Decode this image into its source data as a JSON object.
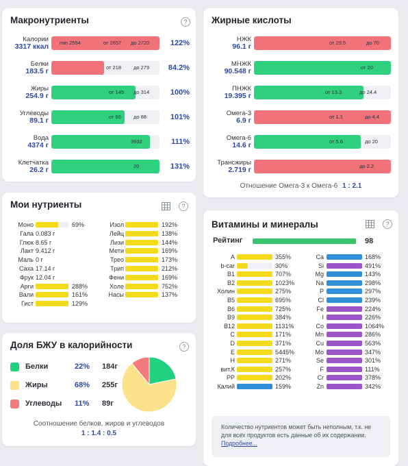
{
  "macro": {
    "title": "Макронутриенты",
    "rows": [
      {
        "label": "Калории",
        "value": "3317 ккал",
        "pct": "122%",
        "color": "red",
        "fill": 1.0,
        "texts": [
          {
            "t": "min 2594",
            "x": 12
          },
          {
            "t": "от 2657",
            "x": 76
          },
          {
            "t": "до 2720",
            "x": 116
          }
        ]
      },
      {
        "label": "Белки",
        "value": "183.5 г",
        "pct": "84.2%",
        "color": "red",
        "fill": 0.49,
        "texts": [
          {
            "t": "от 218",
            "x": 80
          },
          {
            "t": "до 279",
            "x": 120
          }
        ]
      },
      {
        "label": "Жиры",
        "value": "254.9 г",
        "pct": "100%",
        "color": "green",
        "fill": 0.78,
        "texts": [
          {
            "t": "от 145",
            "x": 84
          },
          {
            "t": "до 314",
            "x": 120
          }
        ]
      },
      {
        "label": "Углеводы",
        "value": "89.1 г",
        "pct": "101%",
        "color": "green",
        "fill": 0.68,
        "texts": [
          {
            "t": "от 66",
            "x": 84
          },
          {
            "t": "до 88",
            "x": 120
          }
        ]
      },
      {
        "label": "Вода",
        "value": "4374 г",
        "pct": "111%",
        "color": "green",
        "fill": 0.91,
        "texts": [
          {
            "t": "3932",
            "x": 116
          }
        ]
      },
      {
        "label": "Клетчатка",
        "value": "26.2 г",
        "pct": "131%",
        "color": "green",
        "fill": 1.0,
        "texts": [
          {
            "t": "20",
            "x": 120
          }
        ]
      }
    ]
  },
  "fatty": {
    "title": "Жирные кислоты",
    "rows": [
      {
        "label": "НЖК",
        "value": "96.1 г",
        "color": "red",
        "fill": 1.0,
        "texts": [
          {
            "t": "от 29.5",
            "x": 178
          },
          {
            "t": "до 70",
            "x": 232
          }
        ]
      },
      {
        "label": "МНЖК",
        "value": "90.548 г",
        "color": "green",
        "fill": 1.0,
        "texts": [
          {
            "t": "от 20",
            "x": 224
          }
        ]
      },
      {
        "label": "ПНЖК",
        "value": "19.395 г",
        "color": "green",
        "fill": 0.8,
        "texts": [
          {
            "t": "от 13.3",
            "x": 172
          },
          {
            "t": "до 24.4",
            "x": 222
          }
        ]
      },
      {
        "label": "Омега-3",
        "value": "6.9 г",
        "color": "red",
        "fill": 1.0,
        "texts": [
          {
            "t": "от 1.1",
            "x": 178
          },
          {
            "t": "до 4.4",
            "x": 230
          }
        ]
      },
      {
        "label": "Омега-6",
        "value": "14.6 г",
        "color": "green",
        "fill": 0.78,
        "texts": [
          {
            "t": "от 5.6",
            "x": 178
          },
          {
            "t": "до 20",
            "x": 230
          }
        ]
      },
      {
        "label": "Трансжиры",
        "value": "2.719 г",
        "color": "red",
        "fill": 1.0,
        "texts": [
          {
            "t": "до 2.2",
            "x": 222
          }
        ]
      }
    ],
    "ratio_label": "Отношение Омега-3 к Омега-6",
    "ratio_value": "1 : 2.1"
  },
  "mynutrients": {
    "title": "Мои нутриенты",
    "left": [
      {
        "label": "Моно",
        "pct": "69%",
        "fill": 0.69
      },
      {
        "label": "Гала",
        "text": "0.083 г"
      },
      {
        "label": "Глюк",
        "text": "8.65 г"
      },
      {
        "label": "Лакт",
        "text": "9.412 г"
      },
      {
        "label": "Маль",
        "text": "0 г"
      },
      {
        "label": "Саха",
        "text": "17.14 г"
      },
      {
        "label": "Фрук",
        "text": "12.04 г"
      },
      {
        "label": "Арги",
        "pct": "288%",
        "fill": 1.0
      },
      {
        "label": "Вали",
        "pct": "161%",
        "fill": 1.0
      },
      {
        "label": "Гист",
        "pct": "129%",
        "fill": 1.0
      }
    ],
    "right": [
      {
        "label": "Изол",
        "pct": "192%"
      },
      {
        "label": "Лейц",
        "pct": "138%"
      },
      {
        "label": "Лизи",
        "pct": "144%"
      },
      {
        "label": "Мети",
        "pct": "169%"
      },
      {
        "label": "Трео",
        "pct": "173%"
      },
      {
        "label": "Трип",
        "pct": "212%"
      },
      {
        "label": "Фени",
        "pct": "169%"
      },
      {
        "label": "Холе",
        "pct": "752%"
      },
      {
        "label": "Насы",
        "pct": "137%"
      }
    ]
  },
  "bju": {
    "title": "Доля БЖУ в калорийности",
    "rows": [
      {
        "label": "Белки",
        "pct": "22%",
        "grams": "184г",
        "color": "#22d17d"
      },
      {
        "label": "Жиры",
        "pct": "68%",
        "grams": "255г",
        "color": "#fbe189"
      },
      {
        "label": "Углеводы",
        "pct": "11%",
        "grams": "89г",
        "color": "#f47a7e"
      }
    ],
    "pie": [
      22,
      68,
      11
    ],
    "caption": "Соотношение белков, жиров и углеводов",
    "ratio": "1 : 1.4 : 0.5"
  },
  "vitamins": {
    "title": "Витамины и минералы",
    "rating_label": "Рейтинг",
    "rating_value": "98",
    "rating_fill": 0.98,
    "left": [
      {
        "label": "A",
        "pct": "355%",
        "c": "yellow"
      },
      {
        "label": "b-car",
        "pct": "30%",
        "c": "yellow",
        "fill": 0.3
      },
      {
        "label": "B1",
        "pct": "707%",
        "c": "yellow"
      },
      {
        "label": "B2",
        "pct": "1023%",
        "c": "yellow"
      },
      {
        "label": "Холин",
        "pct": "275%",
        "c": "yellow"
      },
      {
        "label": "B5",
        "pct": "695%",
        "c": "yellow"
      },
      {
        "label": "B6",
        "pct": "725%",
        "c": "yellow"
      },
      {
        "label": "B9",
        "pct": "384%",
        "c": "yellow"
      },
      {
        "label": "B12",
        "pct": "1131%",
        "c": "yellow"
      },
      {
        "label": "C",
        "pct": "171%",
        "c": "yellow"
      },
      {
        "label": "D",
        "pct": "371%",
        "c": "yellow"
      },
      {
        "label": "E",
        "pct": "5445%",
        "c": "yellow"
      },
      {
        "label": "H",
        "pct": "271%",
        "c": "yellow"
      },
      {
        "label": "вит.К",
        "pct": "257%",
        "c": "yellow"
      },
      {
        "label": "PP",
        "pct": "202%",
        "c": "yellow"
      },
      {
        "label": "Калий",
        "pct": "159%",
        "c": "blue"
      }
    ],
    "right": [
      {
        "label": "Ca",
        "pct": "168%",
        "c": "blue"
      },
      {
        "label": "Si",
        "pct": "491%",
        "c": "purple"
      },
      {
        "label": "Mg",
        "pct": "143%",
        "c": "blue"
      },
      {
        "label": "Na",
        "pct": "298%",
        "c": "blue"
      },
      {
        "label": "P",
        "pct": "297%",
        "c": "blue"
      },
      {
        "label": "Cl",
        "pct": "239%",
        "c": "blue"
      },
      {
        "label": "Fe",
        "pct": "224%",
        "c": "purple"
      },
      {
        "label": "I",
        "pct": "226%",
        "c": "purple"
      },
      {
        "label": "Co",
        "pct": "1064%",
        "c": "purple"
      },
      {
        "label": "Mn",
        "pct": "286%",
        "c": "purple"
      },
      {
        "label": "Cu",
        "pct": "563%",
        "c": "purple"
      },
      {
        "label": "Mo",
        "pct": "347%",
        "c": "purple"
      },
      {
        "label": "Se",
        "pct": "301%",
        "c": "purple"
      },
      {
        "label": "F",
        "pct": "111%",
        "c": "purple"
      },
      {
        "label": "Cr",
        "pct": "378%",
        "c": "purple"
      },
      {
        "label": "Zn",
        "pct": "342%",
        "c": "purple"
      }
    ],
    "note": "Количество нутриентов может быть неполным, т.к. не для всех продуктов есть данные об их содержании.",
    "note_link": "Подробнее..."
  },
  "icons": {
    "help": "?",
    "grid": "grid-icon"
  },
  "colors": {
    "red": "#f2727a",
    "green": "#2fd07e",
    "yellow": "#f3da1a",
    "blue": "#2f8fd8",
    "purple": "#9b55c8",
    "accent": "#2e4aa0"
  }
}
